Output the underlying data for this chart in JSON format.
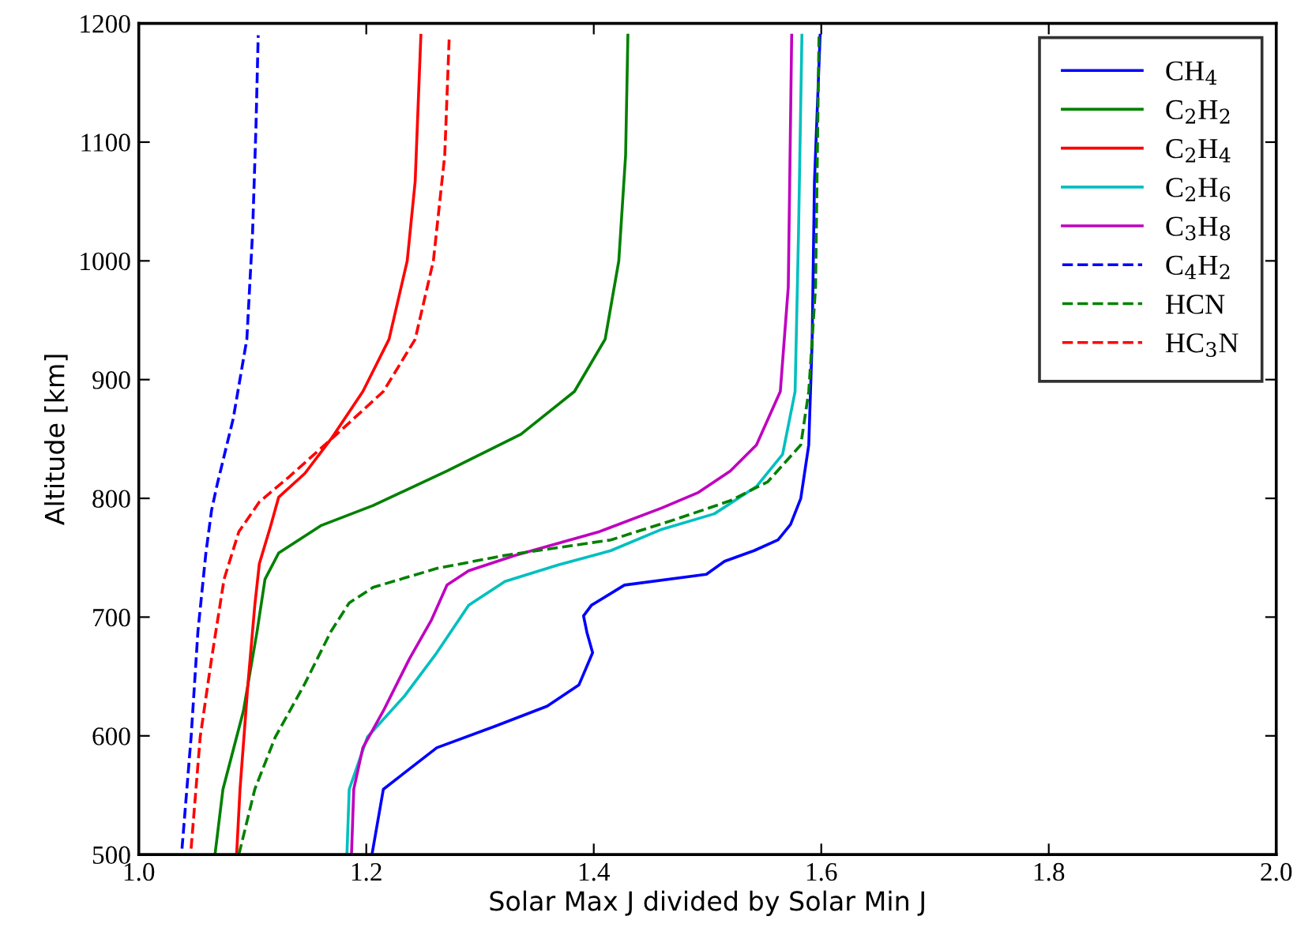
{
  "chart_data": {
    "type": "line",
    "xlabel": "Solar Max J divided by Solar Min J",
    "ylabel": "Altitude [km]",
    "xlim": [
      1.0,
      2.0
    ],
    "ylim": [
      500,
      1200
    ],
    "xticks": [
      {
        "value": 1.0,
        "label": "1.0"
      },
      {
        "value": 1.2,
        "label": "1.2"
      },
      {
        "value": 1.4,
        "label": "1.4"
      },
      {
        "value": 1.6,
        "label": "1.6"
      },
      {
        "value": 1.8,
        "label": "1.8"
      },
      {
        "value": 2.0,
        "label": "2.0"
      }
    ],
    "yticks": [
      500,
      600,
      700,
      800,
      900,
      1000,
      1100,
      1200
    ],
    "grid": false,
    "legend": "top right",
    "series": [
      {
        "name": "CH$_{4}$",
        "color": "#0000ff",
        "line_style": "solid",
        "x": [
          1.205,
          1.215,
          1.262,
          1.313,
          1.359,
          1.387,
          1.399,
          1.394,
          1.391,
          1.398,
          1.427,
          1.499,
          1.515,
          1.541,
          1.562,
          1.573,
          1.582,
          1.589,
          1.592,
          1.594,
          1.599
        ],
        "values": [
          500,
          555,
          590,
          608,
          625,
          643,
          670,
          687,
          701,
          710,
          727,
          736,
          747,
          756,
          765,
          778,
          800,
          845,
          933,
          1066,
          1190
        ]
      },
      {
        "name": "C$_{2}$H$_{2}$",
        "color": "#008000",
        "line_style": "solid",
        "x": [
          1.067,
          1.074,
          1.092,
          1.104,
          1.111,
          1.123,
          1.16,
          1.206,
          1.271,
          1.336,
          1.383,
          1.41,
          1.422,
          1.428,
          1.43
        ],
        "values": [
          500,
          555,
          621,
          688,
          732,
          754,
          777,
          794,
          823,
          854,
          890,
          934,
          1000,
          1089,
          1190
        ]
      },
      {
        "name": "C$_{2}$H$_{4}$",
        "color": "#ff0000",
        "line_style": "solid",
        "x": [
          1.086,
          1.089,
          1.096,
          1.102,
          1.106,
          1.116,
          1.123,
          1.146,
          1.169,
          1.197,
          1.22,
          1.236,
          1.243,
          1.248
        ],
        "values": [
          500,
          555,
          644,
          710,
          745,
          777,
          801,
          821,
          850,
          890,
          934,
          1000,
          1067,
          1190
        ]
      },
      {
        "name": "C$_{2}$H$_{6}$",
        "color": "#00bfbf",
        "line_style": "solid",
        "x": [
          1.183,
          1.185,
          1.201,
          1.234,
          1.262,
          1.29,
          1.322,
          1.369,
          1.415,
          1.46,
          1.506,
          1.543,
          1.566,
          1.577,
          1.58,
          1.583
        ],
        "values": [
          500,
          555,
          599,
          634,
          670,
          710,
          730,
          744,
          756,
          774,
          787,
          810,
          837,
          890,
          1023,
          1190
        ]
      },
      {
        "name": "C$_{3}$H$_{8}$",
        "color": "#bf00bf",
        "line_style": "solid",
        "x": [
          1.187,
          1.189,
          1.197,
          1.215,
          1.238,
          1.257,
          1.271,
          1.29,
          1.331,
          1.405,
          1.46,
          1.492,
          1.52,
          1.543,
          1.564,
          1.571,
          1.574
        ],
        "values": [
          500,
          555,
          590,
          621,
          665,
          697,
          727,
          739,
          752,
          772,
          792,
          805,
          823,
          845,
          890,
          978,
          1190
        ]
      },
      {
        "name": "C$_{4}$H$_{2}$",
        "color": "#0000ff",
        "line_style": "dashed",
        "x": [
          1.038,
          1.046,
          1.052,
          1.059,
          1.064,
          1.069,
          1.083,
          1.095,
          1.1,
          1.103,
          1.105
        ],
        "values": [
          505,
          599,
          688,
          754,
          790,
          812,
          867,
          934,
          1023,
          1112,
          1190
        ]
      },
      {
        "name": "HCN",
        "color": "#008000",
        "line_style": "dashed",
        "x": [
          1.088,
          1.102,
          1.12,
          1.146,
          1.169,
          1.185,
          1.206,
          1.262,
          1.322,
          1.415,
          1.474,
          1.52,
          1.553,
          1.582,
          1.589,
          1.595,
          1.598
        ],
        "values": [
          500,
          555,
          599,
          644,
          688,
          712,
          725,
          741,
          752,
          765,
          783,
          798,
          814,
          845,
          890,
          978,
          1190
        ]
      },
      {
        "name": "HC$_{3}$N",
        "color": "#ff0000",
        "line_style": "dashed",
        "x": [
          1.046,
          1.054,
          1.064,
          1.075,
          1.088,
          1.106,
          1.132,
          1.174,
          1.215,
          1.243,
          1.259,
          1.269,
          1.273
        ],
        "values": [
          505,
          599,
          665,
          732,
          772,
          797,
          818,
          854,
          890,
          934,
          1000,
          1089,
          1190
        ]
      }
    ]
  }
}
